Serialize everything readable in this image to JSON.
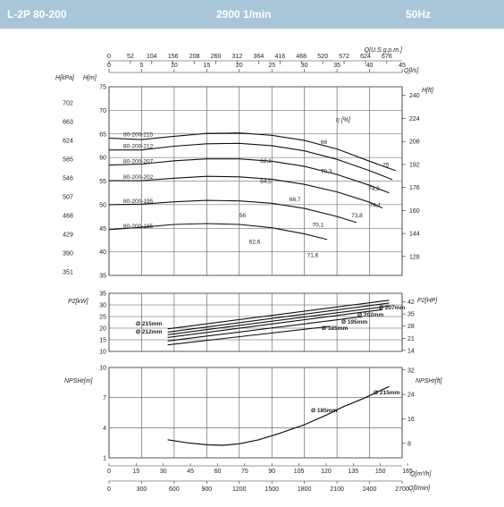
{
  "header": {
    "model": "L-2P 80-200",
    "speed": "2900 1/min",
    "frequency": "50Hz"
  },
  "chart_data": [
    {
      "type": "line",
      "name": "head",
      "xlim": [
        0,
        45
      ],
      "ylim": [
        35,
        75
      ],
      "top_axis": {
        "label": "Q[U.S.g.p.m.]",
        "ticks": [
          "0",
          "52",
          "104",
          "156",
          "208",
          "260",
          "312",
          "364",
          "416",
          "468",
          "520",
          "572",
          "624",
          "676"
        ]
      },
      "top_axis2": {
        "label": "Q[l/s]",
        "ticks": [
          "0",
          "5",
          "10",
          "15",
          "20",
          "25",
          "30",
          "35",
          "40",
          "45"
        ]
      },
      "left_axis_m": {
        "label": "H[m]",
        "ticks": [
          "35",
          "40",
          "45",
          "50",
          "55",
          "60",
          "65",
          "70",
          "75"
        ]
      },
      "left_axis_kpa": {
        "label": "H[kPa]",
        "ticks": [
          "351",
          "390",
          "429",
          "468",
          "507",
          "546",
          "585",
          "624",
          "663",
          "702"
        ]
      },
      "right_axis_ft": {
        "label": "H[ft]",
        "ticks": [
          "128",
          "144",
          "160",
          "176",
          "192",
          "208",
          "224",
          "240"
        ]
      },
      "efficiency_label": "η [%]",
      "series": [
        {
          "name": "80-200-215",
          "x": [
            0,
            5,
            10,
            15,
            20,
            25,
            30,
            35,
            40,
            44
          ],
          "y": [
            64.1,
            63.8,
            64.5,
            65.1,
            65.2,
            64.7,
            63.6,
            61.8,
            59.2,
            57.2
          ]
        },
        {
          "name": "80-200-212",
          "x": [
            0,
            5,
            10,
            15,
            20,
            25,
            30,
            35,
            40,
            43.5
          ],
          "y": [
            61.6,
            61.6,
            62.4,
            62.9,
            63.0,
            62.5,
            61.4,
            59.6,
            57.2,
            55.3
          ]
        },
        {
          "name": "80-200-207",
          "x": [
            0,
            5,
            10,
            15,
            20,
            25,
            30,
            35,
            40,
            43
          ],
          "y": [
            58.4,
            58.6,
            59.3,
            59.7,
            59.7,
            59.2,
            58.1,
            56.4,
            54.1,
            52.5
          ]
        },
        {
          "name": "80-200-202",
          "x": [
            0,
            5,
            10,
            15,
            20,
            25,
            30,
            35,
            40,
            42
          ],
          "y": [
            55.1,
            55.1,
            55.6,
            56.0,
            55.9,
            55.4,
            54.3,
            52.7,
            50.5,
            49.3
          ]
        },
        {
          "name": "80-200-195",
          "x": [
            0,
            5,
            10,
            15,
            20,
            25,
            30,
            35,
            38
          ],
          "y": [
            50.0,
            50.1,
            50.6,
            50.9,
            50.8,
            50.3,
            49.2,
            47.5,
            46.2
          ]
        },
        {
          "name": "80-200-185",
          "x": [
            0,
            5,
            10,
            15,
            20,
            25,
            30,
            33.5
          ],
          "y": [
            44.7,
            45.2,
            45.8,
            46.0,
            45.8,
            45.1,
            43.8,
            42.6
          ]
        }
      ],
      "efficiency_labels": [
        {
          "text": "66",
          "x": 32.5,
          "y": 62.9
        },
        {
          "text": "62,1",
          "x": 23.2,
          "y": 58.9
        },
        {
          "text": "70,3",
          "x": 32.5,
          "y": 56.7
        },
        {
          "text": "64,5",
          "x": 23.2,
          "y": 54.5
        },
        {
          "text": "75",
          "x": 42.0,
          "y": 58.0
        },
        {
          "text": "74,2",
          "x": 39.8,
          "y": 53.0
        },
        {
          "text": "66,7",
          "x": 27.7,
          "y": 50.7
        },
        {
          "text": "74,1",
          "x": 40.0,
          "y": 49.5
        },
        {
          "text": "73,8",
          "x": 37.2,
          "y": 47.3
        },
        {
          "text": "56",
          "x": 20.0,
          "y": 47.3
        },
        {
          "text": "70,1",
          "x": 31.2,
          "y": 45.3
        },
        {
          "text": "62,6",
          "x": 21.5,
          "y": 41.7
        },
        {
          "text": "71,6",
          "x": 30.4,
          "y": 38.9
        }
      ]
    },
    {
      "type": "line",
      "name": "power",
      "xlim": [
        0,
        45
      ],
      "ylim": [
        10,
        35
      ],
      "left_axis": {
        "label": "P2[kW]",
        "ticks": [
          "10",
          "15",
          "20",
          "25",
          "30",
          "35"
        ]
      },
      "right_axis": {
        "label": "P2[HP]",
        "ticks": [
          "14",
          "21",
          "28",
          "35",
          "42"
        ]
      },
      "series": [
        {
          "name": "Ø 215mm",
          "x": [
            9,
            43
          ],
          "y": [
            19.7,
            32.0
          ]
        },
        {
          "name": "Ø 212mm",
          "x": [
            9,
            43
          ],
          "y": [
            18.3,
            30.8
          ]
        },
        {
          "name": "Ø 207mm",
          "x": [
            9,
            43
          ],
          "y": [
            17.2,
            29.5
          ]
        },
        {
          "name": "Ø 202mm",
          "x": [
            9,
            42
          ],
          "y": [
            16.0,
            28.0
          ]
        },
        {
          "name": "Ø 195mm",
          "x": [
            9,
            39
          ],
          "y": [
            14.5,
            25.0
          ]
        },
        {
          "name": "Ø 185mm",
          "x": [
            9,
            34
          ],
          "y": [
            12.8,
            20.8
          ]
        }
      ]
    },
    {
      "type": "line",
      "name": "npsh",
      "xlim": [
        0,
        45
      ],
      "ylim": [
        1,
        10
      ],
      "left_axis": {
        "label": "NPSHr[m]",
        "ticks": [
          "1",
          "4",
          "7",
          "10"
        ]
      },
      "right_axis": {
        "label": "NPSHr[ft]",
        "ticks": [
          "8",
          "16",
          "24",
          "32"
        ]
      },
      "series": [
        {
          "name": "Ø 185mm",
          "x": [
            9,
            12,
            15,
            17.5,
            20,
            23,
            26,
            30,
            33.5
          ],
          "y": [
            2.8,
            2.5,
            2.3,
            2.25,
            2.4,
            2.8,
            3.4,
            4.3,
            5.3
          ]
        },
        {
          "name": "Ø 215mm",
          "x": [
            33.5,
            36,
            39,
            42,
            43
          ],
          "y": [
            5.3,
            6.1,
            6.9,
            7.8,
            8.1
          ]
        }
      ],
      "bottom_axis": {
        "label": "Q[m³/h]",
        "ticks": [
          "0",
          "15",
          "30",
          "45",
          "60",
          "75",
          "90",
          "105",
          "120",
          "135",
          "150",
          "165"
        ]
      },
      "bottom_axis2": {
        "label": "Q[l/min]",
        "ticks": [
          "0",
          "300",
          "600",
          "900",
          "1200",
          "1500",
          "1800",
          "2100",
          "2400",
          "2700"
        ]
      }
    }
  ]
}
